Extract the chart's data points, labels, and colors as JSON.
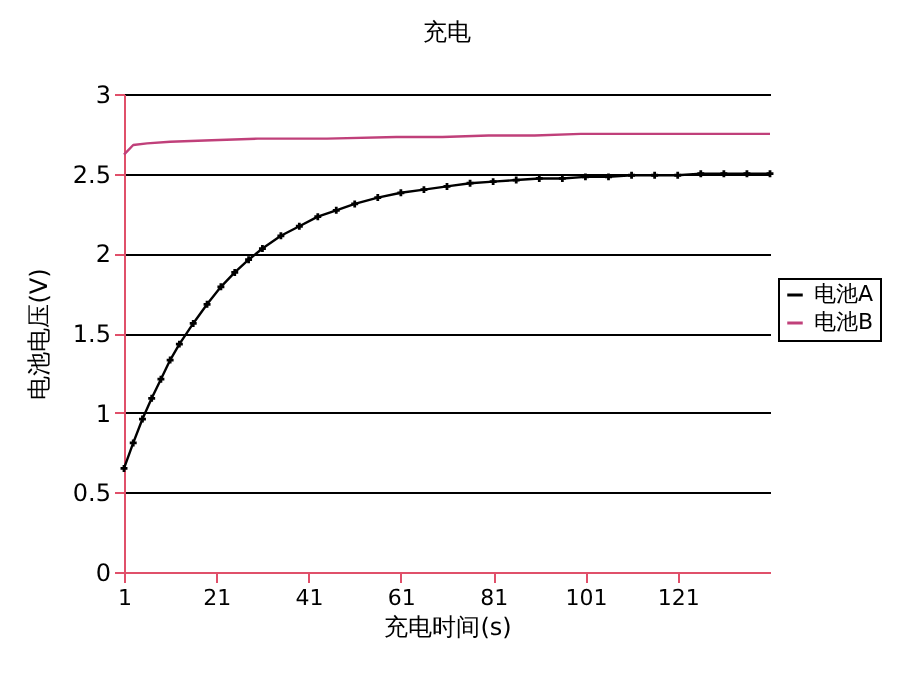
{
  "chart_data": {
    "type": "line",
    "title": "充电",
    "xlabel": "充电时间(s)",
    "ylabel": "电池电压(V)",
    "xlim": [
      1,
      141
    ],
    "xticks": [
      1,
      21,
      41,
      61,
      81,
      101,
      121
    ],
    "ylim": [
      0,
      3
    ],
    "yticks": [
      0,
      0.5,
      1,
      1.5,
      2,
      2.5,
      3
    ],
    "grid": "y",
    "legend": "right",
    "series": [
      {
        "name": "电池A",
        "color": "#000000",
        "marker": "cross",
        "x": [
          1,
          3,
          5,
          7,
          9,
          11,
          13,
          16,
          19,
          22,
          25,
          28,
          31,
          35,
          39,
          43,
          47,
          51,
          56,
          61,
          66,
          71,
          76,
          81,
          86,
          91,
          96,
          101,
          106,
          111,
          116,
          121,
          126,
          131,
          136,
          141
        ],
        "values": [
          0.65,
          0.81,
          0.96,
          1.09,
          1.21,
          1.33,
          1.43,
          1.56,
          1.68,
          1.79,
          1.88,
          1.96,
          2.03,
          2.11,
          2.17,
          2.23,
          2.27,
          2.31,
          2.35,
          2.38,
          2.4,
          2.42,
          2.44,
          2.45,
          2.46,
          2.47,
          2.47,
          2.48,
          2.48,
          2.49,
          2.49,
          2.49,
          2.5,
          2.5,
          2.5,
          2.5
        ]
      },
      {
        "name": "电池B",
        "color": "#c0407a",
        "x": [
          1,
          3,
          6,
          11,
          20,
          30,
          45,
          60,
          70,
          80,
          90,
          100,
          110,
          120,
          130,
          141
        ],
        "values": [
          2.62,
          2.68,
          2.69,
          2.7,
          2.71,
          2.72,
          2.72,
          2.73,
          2.73,
          2.74,
          2.74,
          2.75,
          2.75,
          2.75,
          2.75,
          2.75
        ]
      }
    ]
  }
}
